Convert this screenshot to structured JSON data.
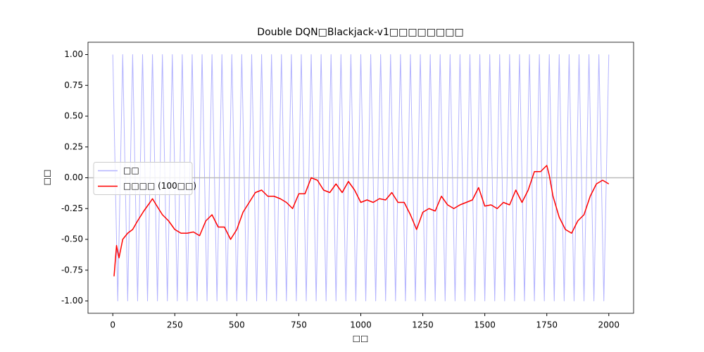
{
  "chart_data": {
    "type": "line",
    "title": "Double DQN□Blackjack-v1□□□□□□□□",
    "x_label": "□□",
    "y_label": "□□",
    "xlim": [
      -100,
      2100
    ],
    "ylim": [
      -1.1,
      1.1
    ],
    "xticks": [
      0,
      250,
      500,
      750,
      1000,
      1250,
      1500,
      1750,
      2000
    ],
    "yticks": [
      {
        "value": -1,
        "label": "-1.00"
      },
      {
        "value": -0.75,
        "label": "-0.75"
      },
      {
        "value": -0.5,
        "label": "-0.50"
      },
      {
        "value": -0.25,
        "label": "-0.25"
      },
      {
        "value": 0,
        "label": "0.00"
      },
      {
        "value": 0.25,
        "label": "0.25"
      },
      {
        "value": 0.5,
        "label": "0.50"
      },
      {
        "value": 0.75,
        "label": "0.75"
      },
      {
        "value": 1,
        "label": "1.00"
      }
    ],
    "hline": 0,
    "hline_color": "#bbbbbb",
    "legend": "center left",
    "series": [
      {
        "name": "□□",
        "color": "#b3b3ff",
        "x": [
          0,
          20,
          40,
          60,
          80,
          100,
          120,
          140,
          160,
          180,
          200,
          220,
          240,
          260,
          280,
          300,
          320,
          340,
          360,
          380,
          400,
          420,
          440,
          460,
          480,
          500,
          520,
          540,
          560,
          580,
          600,
          620,
          640,
          660,
          680,
          700,
          720,
          740,
          760,
          780,
          800,
          820,
          840,
          860,
          880,
          900,
          920,
          940,
          960,
          980,
          1000,
          1020,
          1040,
          1060,
          1080,
          1100,
          1120,
          1140,
          1160,
          1180,
          1200,
          1220,
          1240,
          1260,
          1280,
          1300,
          1320,
          1340,
          1360,
          1380,
          1400,
          1420,
          1440,
          1460,
          1480,
          1500,
          1520,
          1540,
          1560,
          1580,
          1600,
          1620,
          1640,
          1660,
          1680,
          1700,
          1720,
          1740,
          1760,
          1780,
          1800,
          1820,
          1840,
          1860,
          1880,
          1900,
          1920,
          1940,
          1960,
          1980,
          2000
        ],
        "values": [
          1,
          -1,
          1,
          -1,
          1,
          -1,
          1,
          -1,
          1,
          -1,
          1,
          -1,
          1,
          -1,
          1,
          -1,
          1,
          -1,
          1,
          -1,
          1,
          -1,
          1,
          -1,
          1,
          -1,
          1,
          -1,
          1,
          -1,
          1,
          -1,
          1,
          -1,
          1,
          -1,
          1,
          -1,
          1,
          -1,
          1,
          -1,
          1,
          -1,
          1,
          -1,
          1,
          -1,
          1,
          -1,
          1,
          -1,
          1,
          -1,
          1,
          -1,
          1,
          -1,
          1,
          -1,
          1,
          -1,
          1,
          -1,
          1,
          -1,
          1,
          -1,
          1,
          -1,
          1,
          -1,
          1,
          -1,
          1,
          -1,
          1,
          -1,
          1,
          -1,
          1,
          -1,
          1,
          -1,
          1,
          -1,
          1,
          -1,
          1,
          -1,
          1,
          -1,
          1,
          -1,
          1,
          -1,
          1,
          -1,
          1,
          -1,
          1
        ]
      },
      {
        "name": "□□□□ (100□□)",
        "color": "#ff0000",
        "x": [
          5,
          15,
          25,
          40,
          60,
          80,
          100,
          125,
          150,
          160,
          175,
          200,
          225,
          250,
          275,
          300,
          325,
          350,
          375,
          400,
          425,
          450,
          475,
          500,
          525,
          550,
          575,
          600,
          625,
          650,
          675,
          700,
          725,
          750,
          775,
          800,
          825,
          850,
          875,
          900,
          925,
          950,
          975,
          1000,
          1025,
          1050,
          1075,
          1100,
          1125,
          1150,
          1175,
          1200,
          1225,
          1250,
          1275,
          1300,
          1325,
          1350,
          1375,
          1400,
          1425,
          1450,
          1475,
          1500,
          1525,
          1550,
          1575,
          1600,
          1625,
          1650,
          1675,
          1700,
          1725,
          1750,
          1760,
          1775,
          1800,
          1825,
          1850,
          1875,
          1900,
          1925,
          1950,
          1975,
          2000
        ],
        "values": [
          -0.8,
          -0.55,
          -0.65,
          -0.5,
          -0.45,
          -0.42,
          -0.35,
          -0.27,
          -0.2,
          -0.17,
          -0.22,
          -0.3,
          -0.35,
          -0.42,
          -0.45,
          -0.45,
          -0.44,
          -0.47,
          -0.35,
          -0.3,
          -0.4,
          -0.4,
          -0.5,
          -0.42,
          -0.28,
          -0.2,
          -0.12,
          -0.1,
          -0.15,
          -0.15,
          -0.17,
          -0.2,
          -0.25,
          -0.13,
          -0.13,
          0,
          -0.02,
          -0.1,
          -0.12,
          -0.05,
          -0.12,
          -0.03,
          -0.1,
          -0.2,
          -0.18,
          -0.2,
          -0.17,
          -0.18,
          -0.12,
          -0.2,
          -0.2,
          -0.3,
          -0.42,
          -0.28,
          -0.25,
          -0.27,
          -0.15,
          -0.22,
          -0.25,
          -0.22,
          -0.2,
          -0.18,
          -0.08,
          -0.23,
          -0.22,
          -0.25,
          -0.2,
          -0.22,
          -0.1,
          -0.2,
          -0.1,
          0.05,
          0.05,
          0.1,
          0.02,
          -0.15,
          -0.32,
          -0.42,
          -0.45,
          -0.35,
          -0.3,
          -0.15,
          -0.05,
          -0.02,
          -0.05
        ]
      }
    ]
  }
}
